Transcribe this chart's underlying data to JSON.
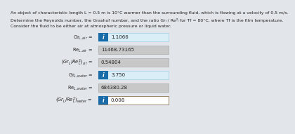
{
  "title_lines": [
    "An object of characteristic length L = 0.5 m is 10°C warmer than the surrounding fluid, which is flowing at a velocity of 0.5 m/s.",
    "Determine the Reynolds number, the Grashof number, and the ratio Grₗ / Re²ₗ for Tf = 80°C, where Tf is the film temperature.",
    "Consider the fluid to be either air at atmospheric pressure or liquid water."
  ],
  "rows": [
    {
      "label": "Gr$_{L,air}$ =",
      "has_icon": true,
      "icon_color": "#1a6ca8",
      "value": "1.1066",
      "box_color": "#daeef8",
      "border_color": "#aad4e8"
    },
    {
      "label": "Re$_{L,air}$ =",
      "has_icon": false,
      "icon_color": null,
      "value": "11468.73165",
      "box_color": "#c8c8c8",
      "border_color": "#b0b0b0"
    },
    {
      "label": "$(Gr_L / Re_L^2)_{air}$ =",
      "has_icon": false,
      "icon_color": null,
      "value": "0.54804",
      "box_color": "#c8c8c8",
      "border_color": "#b0b0b0"
    },
    {
      "label": "Gr$_{L,water}$ =",
      "has_icon": true,
      "icon_color": "#1a6ca8",
      "value": "3.750",
      "box_color": "#daeef8",
      "border_color": "#aad4e8"
    },
    {
      "label": "Re$_{L,water}$ =",
      "has_icon": false,
      "icon_color": null,
      "value": "684380.28",
      "box_color": "#c8c8c8",
      "border_color": "#b0b0b0"
    },
    {
      "label": "$(Gr_L / Re_L^2)_{water}$ =",
      "has_icon": true,
      "icon_color": "#1a6ca8",
      "value": "0.008",
      "box_color": "#ffffff",
      "border_color": "#8b7355"
    }
  ],
  "bg_color": "#e2e6ea",
  "panel_color": "#f0f2f4",
  "text_color": "#222222",
  "label_fontsize": 4.8,
  "value_fontsize": 5.0,
  "title_fontsize": 4.4
}
